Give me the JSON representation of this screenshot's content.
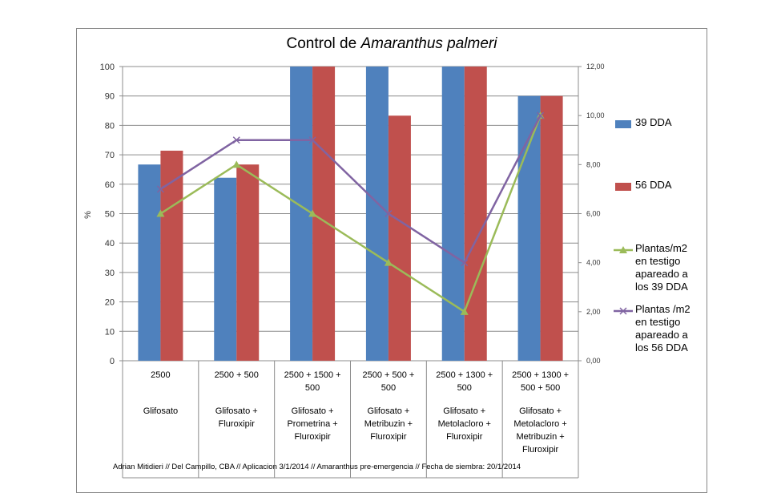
{
  "chart_data": {
    "type": "bar",
    "title_plain": "Control de ",
    "title_italic": "Amaranthus palmeri",
    "ylabel": "%",
    "ylim": [
      0,
      100
    ],
    "yticks": [
      "0",
      "10",
      "20",
      "30",
      "40",
      "50",
      "60",
      "70",
      "80",
      "90",
      "100"
    ],
    "y2lim": [
      0,
      12
    ],
    "y2ticks": [
      "0,00",
      "2,00",
      "4,00",
      "6,00",
      "8,00",
      "10,00",
      "12,00"
    ],
    "categories": [
      {
        "dose": [
          "2500"
        ],
        "name": [
          "Glifosato"
        ]
      },
      {
        "dose": [
          "2500 + 500"
        ],
        "name": [
          "Glifosato +",
          "Fluroxipir"
        ]
      },
      {
        "dose": [
          "2500 + 1500 +",
          "500"
        ],
        "name": [
          "Glifosato +",
          "Prometrina +",
          "Fluroxipir"
        ]
      },
      {
        "dose": [
          "2500 + 500 +",
          "500"
        ],
        "name": [
          "Glifosato +",
          "Metribuzin +",
          "Fluroxipir"
        ]
      },
      {
        "dose": [
          "2500 + 1300 +",
          "500"
        ],
        "name": [
          "Glifosato +",
          "Metolacloro +",
          "Fluroxipir"
        ]
      },
      {
        "dose": [
          "2500 + 1300 +",
          "500 + 500"
        ],
        "name": [
          "Glifosato +",
          "Metolacloro +",
          "Metribuzin +",
          "Fluroxipir"
        ]
      }
    ],
    "series": [
      {
        "name": "39 DDA",
        "kind": "bar",
        "axis": "left",
        "color": "#4f81bd",
        "values": [
          66.7,
          62.2,
          100,
          100,
          100,
          90
        ]
      },
      {
        "name": "56 DDA",
        "kind": "bar",
        "axis": "left",
        "color": "#c0504d",
        "values": [
          71.4,
          66.7,
          100,
          83.3,
          100,
          90
        ]
      },
      {
        "name": "Plantas/m2 en testigo apareado a los 39 DDA",
        "kind": "line",
        "marker": "triangle",
        "axis": "right",
        "color": "#9bbb59",
        "values": [
          6,
          8,
          6,
          4,
          2,
          10
        ]
      },
      {
        "name": "Plantas /m2 en testigo apareado a los 56 DDA",
        "kind": "line",
        "marker": "x",
        "axis": "right",
        "color": "#8064a2",
        "values": [
          7,
          9,
          9,
          6,
          4,
          10
        ]
      }
    ],
    "legend_lines": [
      [
        "39 DDA"
      ],
      [
        "56 DDA"
      ],
      [
        "Plantas/m2",
        "en testigo",
        "apareado a",
        "los 39 DDA"
      ],
      [
        "Plantas /m2",
        "en testigo",
        "apareado a",
        "los 56 DDA"
      ]
    ],
    "legend_position": "right",
    "grid": true,
    "footer": "Adrian Mitidieri // Del Campillo, CBA // Aplicacion 3/1/2014  // Amaranthus pre-emergencia // Fecha de siembra: 20/1/2014"
  }
}
